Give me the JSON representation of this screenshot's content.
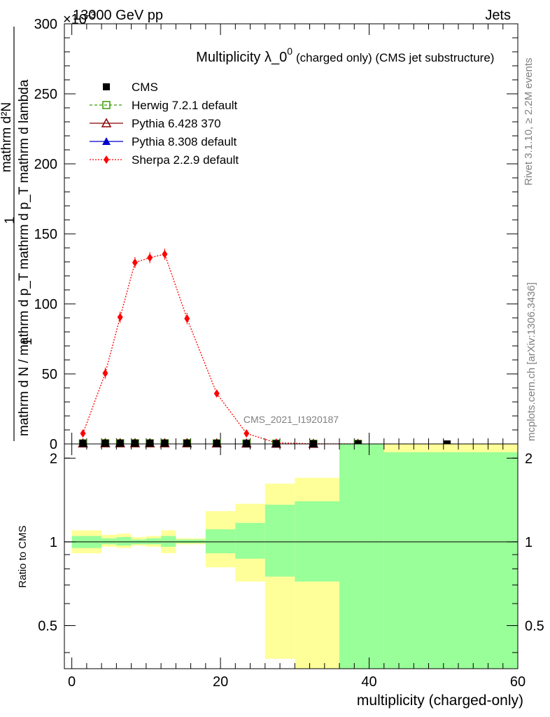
{
  "header": {
    "energy_label": "13000 GeV pp",
    "category_label": "Jets",
    "exponent_label": "×10",
    "exponent_power": "-3"
  },
  "side_labels": {
    "rivet": "Rivet 3.1.10, ≥ 2.2M events",
    "mcplots": "mcplots.cern.ch [arXiv:1306.3436]"
  },
  "plot_title": {
    "main": "Multiplicity λ_0",
    "superscript": "0",
    "suffix": "(charged only) (CMS jet substructure)"
  },
  "analysis_label": "CMS_2021_I1920187",
  "colors": {
    "cms": "#000000",
    "herwig": "#3a9c00",
    "pythia6": "#8b0000",
    "pythia8": "#0000cc",
    "sherpa": "#ff0000",
    "band_1sigma": "#99ff99",
    "band_2sigma": "#ffff99"
  },
  "chart_data": [
    {
      "type": "scatter",
      "panel": "main",
      "ylabel_numerator": "1",
      "ylabel_denominator": "mathrm d N / mathrm d p_T mathrm d p_T mathrm d lambda",
      "ylabel_top": "mathrm d²N",
      "xlim": [
        -1,
        60
      ],
      "ylim": [
        0,
        300
      ],
      "y_scale_factor": "×10^-3",
      "y_ticks": [
        "0",
        "50",
        "100",
        "150",
        "200",
        "250",
        "300"
      ],
      "legend": [
        {
          "name": "CMS",
          "key": "cms"
        },
        {
          "name": "Herwig 7.2.1 default",
          "key": "herwig"
        },
        {
          "name": "Pythia 6.428 370",
          "key": "pythia6"
        },
        {
          "name": "Pythia 8.308 default",
          "key": "pythia8"
        },
        {
          "name": "Sherpa 2.2.9 default",
          "key": "sherpa"
        }
      ],
      "series": [
        {
          "name": "CMS",
          "key": "cms",
          "marker": "square",
          "x": [
            1.5,
            4.5,
            6.5,
            8.5,
            10.5,
            12.5,
            15.5,
            19.5,
            23.5,
            27.5,
            32.5,
            38.5,
            50.5
          ],
          "y": [
            0.4,
            0.5,
            0.5,
            0.5,
            0.5,
            0.5,
            0.5,
            0.4,
            0.3,
            0.2,
            0.1,
            0.05,
            0.01
          ]
        },
        {
          "name": "Herwig 7.2.1 default",
          "key": "herwig",
          "marker": "open-square",
          "x": [
            1.5,
            4.5,
            6.5,
            8.5,
            10.5,
            12.5,
            15.5,
            19.5,
            23.5,
            27.5,
            32.5,
            38.5
          ],
          "y": [
            0.4,
            0.5,
            0.5,
            0.5,
            0.5,
            0.5,
            0.5,
            0.4,
            0.3,
            0.2,
            0.1,
            0.05
          ]
        },
        {
          "name": "Pythia 6.428 370",
          "key": "pythia6",
          "marker": "open-triangle",
          "x": [
            1.5,
            4.5,
            6.5,
            8.5,
            10.5,
            12.5,
            15.5,
            19.5,
            23.5,
            27.5,
            32.5,
            38.5
          ],
          "y": [
            0.4,
            0.5,
            0.5,
            0.5,
            0.5,
            0.5,
            0.5,
            0.4,
            0.3,
            0.2,
            0.1,
            0.05
          ]
        },
        {
          "name": "Pythia 8.308 default",
          "key": "pythia8",
          "marker": "triangle",
          "x": [
            1.5,
            4.5,
            6.5,
            8.5,
            10.5,
            12.5,
            15.5,
            19.5,
            23.5,
            27.5,
            32.5,
            38.5
          ],
          "y": [
            0.4,
            0.5,
            0.5,
            0.5,
            0.5,
            0.5,
            0.5,
            0.4,
            0.3,
            0.2,
            0.1,
            0.05
          ]
        },
        {
          "name": "Sherpa 2.2.9 default",
          "key": "sherpa",
          "marker": "diamond",
          "x": [
            1.5,
            4.5,
            6.5,
            8.5,
            10.5,
            12.5,
            15.5,
            19.5,
            23.5,
            27.5,
            32.5,
            38.5
          ],
          "y": [
            7.5,
            50.5,
            90.5,
            129.5,
            133,
            135.5,
            89.5,
            36,
            7.5,
            0.8,
            0.1,
            0.0
          ]
        }
      ]
    },
    {
      "type": "area",
      "panel": "ratio",
      "ylabel": "Ratio to CMS",
      "xlabel": "multiplicity (charged-only)",
      "xlim": [
        -1,
        60
      ],
      "ylim": [
        0.35,
        2.25
      ],
      "x_ticks": [
        "0",
        "20",
        "40",
        "60"
      ],
      "y_ticks": [
        "0.5",
        "1",
        "2"
      ],
      "bins": [
        {
          "lo": 0,
          "hi": 4,
          "s1": [
            0.95,
            1.05
          ],
          "s2": [
            0.91,
            1.1
          ]
        },
        {
          "lo": 4,
          "hi": 6,
          "s1": [
            0.98,
            1.03
          ],
          "s2": [
            0.96,
            1.06
          ]
        },
        {
          "lo": 6,
          "hi": 8,
          "s1": [
            0.97,
            1.04
          ],
          "s2": [
            0.95,
            1.07
          ]
        },
        {
          "lo": 8,
          "hi": 10,
          "s1": [
            0.98,
            1.02
          ],
          "s2": [
            0.97,
            1.04
          ]
        },
        {
          "lo": 10,
          "hi": 12,
          "s1": [
            0.98,
            1.03
          ],
          "s2": [
            0.96,
            1.05
          ]
        },
        {
          "lo": 12,
          "hi": 14,
          "s1": [
            0.96,
            1.05
          ],
          "s2": [
            0.91,
            1.1
          ]
        },
        {
          "lo": 14,
          "hi": 18,
          "s1": [
            0.99,
            1.02
          ],
          "s2": [
            0.98,
            1.03
          ]
        },
        {
          "lo": 18,
          "hi": 22,
          "s1": [
            0.91,
            1.11
          ],
          "s2": [
            0.81,
            1.29
          ]
        },
        {
          "lo": 22,
          "hi": 26,
          "s1": [
            0.87,
            1.17
          ],
          "s2": [
            0.72,
            1.37
          ]
        },
        {
          "lo": 26,
          "hi": 30,
          "s1": [
            0.75,
            1.36
          ],
          "s2": [
            0.38,
            1.62
          ]
        },
        {
          "lo": 30,
          "hi": 36,
          "s1": [
            0.72,
            1.4
          ],
          "s2": [
            0.35,
            1.7
          ]
        },
        {
          "lo": 36,
          "hi": 42,
          "s1": [
            0.35,
            2.25
          ],
          "s2": [
            0.35,
            2.25
          ]
        },
        {
          "lo": 42,
          "hi": 60,
          "s1": [
            0.35,
            2.1
          ],
          "s2": [
            0.35,
            2.25
          ]
        }
      ]
    }
  ]
}
